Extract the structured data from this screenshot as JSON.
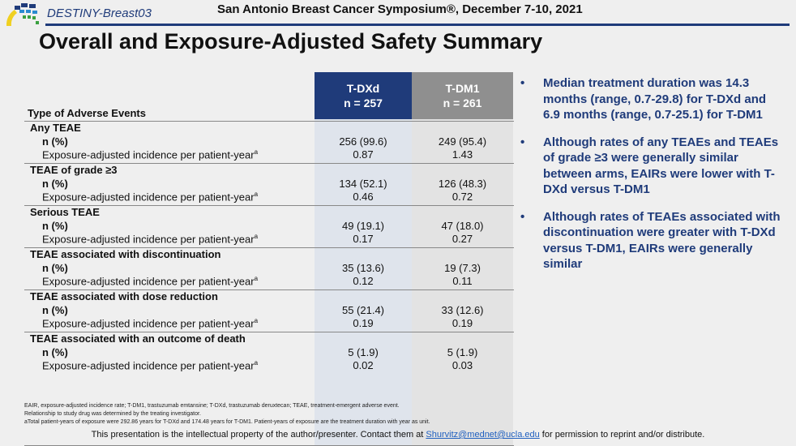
{
  "header": {
    "study": "DESTINY-Breast03",
    "conference": "San Antonio Breast Cancer Symposium®, December 7-10, 2021"
  },
  "title": "Overall and Exposure-Adjusted Safety Summary",
  "table": {
    "type_header": "Type of Adverse Events",
    "arms": [
      {
        "name": "T-DXd",
        "n": "n = 257"
      },
      {
        "name": "T-DM1",
        "n": "n = 261"
      }
    ],
    "n_label": "n (%)",
    "eair_label": "Exposure-adjusted incidence per patient-year",
    "eair_sup": "a",
    "groups": [
      {
        "title": "Any TEAE",
        "n": [
          "256 (99.6)",
          "249 (95.4)"
        ],
        "eair": [
          "0.87",
          "1.43"
        ]
      },
      {
        "title": "TEAE of grade ≥3",
        "n": [
          "134 (52.1)",
          "126 (48.3)"
        ],
        "eair": [
          "0.46",
          "0.72"
        ]
      },
      {
        "title": "Serious TEAE",
        "n": [
          "49 (19.1)",
          "47 (18.0)"
        ],
        "eair": [
          "0.17",
          "0.27"
        ]
      },
      {
        "title": "TEAE associated with discontinuation",
        "n": [
          "35 (13.6)",
          "19 (7.3)"
        ],
        "eair": [
          "0.12",
          "0.11"
        ]
      },
      {
        "title": "TEAE associated with dose reduction",
        "n": [
          "55 (21.4)",
          "33 (12.6)"
        ],
        "eair": [
          "0.19",
          "0.19"
        ]
      },
      {
        "title": "TEAE associated with an outcome of death",
        "n": [
          "5 (1.9)",
          "5 (1.9)"
        ],
        "eair": [
          "0.02",
          "0.03"
        ]
      }
    ]
  },
  "bullets": [
    "Median treatment duration was 14.3 months (range, 0.7-29.8) for T-DXd and 6.9 months (range, 0.7-25.1) for T-DM1",
    "Although rates of any TEAEs and TEAEs of grade ≥3 were generally similar between arms, EAIRs were lower with T-DXd versus T-DM1",
    "Although rates of TEAEs associated with discontinuation were greater with T-DXd versus T-DM1, EAIRs were generally similar"
  ],
  "footnotes": [
    "EAIR, exposure-adjusted incidence rate; T-DM1, trastuzumab emtansine; T-DXd, trastuzumab deruxtecan; TEAE, treatment-emergent adverse event.",
    "Relationship to study drug was determined by the treating investigator.",
    "aTotal patient-years of exposure were 292.86 years for T-DXd and 174.48 years for T-DM1. Patient-years of exposure are the treatment duration with year as unit."
  ],
  "ip": {
    "before": "This presentation is the intellectual property of the author/presenter. Contact them at ",
    "email": "Shurvitz@mednet@ucla.edu",
    "after": " for permission to reprint and/or distribute."
  },
  "colors": {
    "navy": "#1f3b7a",
    "gray_header": "#8f8f8f"
  }
}
